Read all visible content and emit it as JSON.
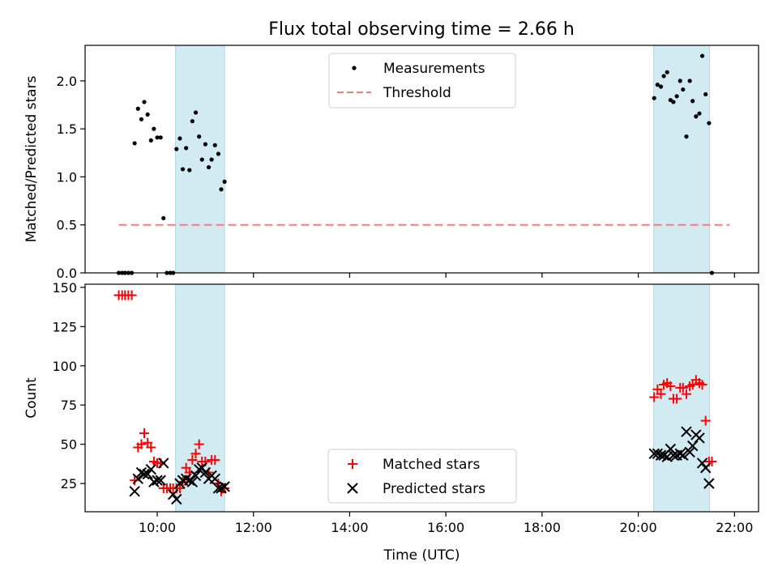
{
  "title": "Flux total observing time = 2.66 h",
  "chart_data": [
    {
      "type": "scatter",
      "panel": "top",
      "ylabel": "Matched/Predicted stars",
      "ylim": [
        0,
        2.37
      ],
      "yticks": [
        0.0,
        0.5,
        1.0,
        1.5,
        2.0
      ],
      "ytick_labels": [
        "0.0",
        "0.5",
        "1.0",
        "1.5",
        "2.0"
      ],
      "legend_position": "top-center",
      "threshold": {
        "name": "Threshold",
        "value": 0.5,
        "x_range": [
          9.2,
          21.9
        ],
        "color": "#f08080",
        "style": "dashed"
      },
      "series": [
        {
          "name": "Measurements",
          "marker": "dot",
          "color": "#000000",
          "points": [
            [
              9.2,
              0.0
            ],
            [
              9.27,
              0.0
            ],
            [
              9.33,
              0.0
            ],
            [
              9.4,
              0.0
            ],
            [
              9.47,
              0.0
            ],
            [
              9.53,
              1.35
            ],
            [
              9.6,
              1.71
            ],
            [
              9.67,
              1.6
            ],
            [
              9.73,
              1.78
            ],
            [
              9.8,
              1.65
            ],
            [
              9.87,
              1.38
            ],
            [
              9.93,
              1.5
            ],
            [
              10.0,
              1.41
            ],
            [
              10.07,
              1.41
            ],
            [
              10.13,
              0.57
            ],
            [
              10.2,
              0.0
            ],
            [
              10.27,
              0.0
            ],
            [
              10.33,
              0.0
            ],
            [
              10.4,
              1.29
            ],
            [
              10.47,
              1.4
            ],
            [
              10.53,
              1.08
            ],
            [
              10.6,
              1.3
            ],
            [
              10.67,
              1.07
            ],
            [
              10.73,
              1.58
            ],
            [
              10.8,
              1.67
            ],
            [
              10.87,
              1.42
            ],
            [
              10.93,
              1.18
            ],
            [
              11.0,
              1.34
            ],
            [
              11.07,
              1.1
            ],
            [
              11.13,
              1.18
            ],
            [
              11.2,
              1.33
            ],
            [
              11.27,
              1.24
            ],
            [
              11.33,
              0.87
            ],
            [
              11.4,
              0.95
            ],
            [
              20.33,
              1.82
            ],
            [
              20.4,
              1.96
            ],
            [
              20.47,
              1.94
            ],
            [
              20.53,
              2.05
            ],
            [
              20.6,
              2.09
            ],
            [
              20.67,
              1.8
            ],
            [
              20.73,
              1.78
            ],
            [
              20.8,
              1.84
            ],
            [
              20.87,
              2.0
            ],
            [
              20.93,
              1.91
            ],
            [
              21.0,
              1.42
            ],
            [
              21.07,
              2.0
            ],
            [
              21.13,
              1.79
            ],
            [
              21.2,
              1.63
            ],
            [
              21.27,
              1.66
            ],
            [
              21.33,
              2.26
            ],
            [
              21.4,
              1.86
            ],
            [
              21.47,
              1.56
            ],
            [
              21.53,
              0.0
            ]
          ]
        }
      ]
    },
    {
      "type": "scatter",
      "panel": "bottom",
      "xlabel": "Time (UTC)",
      "ylabel": "Count",
      "ylim": [
        7,
        152
      ],
      "yticks": [
        25,
        50,
        75,
        100,
        125,
        150
      ],
      "ytick_labels": [
        "25",
        "50",
        "75",
        "100",
        "125",
        "150"
      ],
      "legend_position": "bottom-center",
      "series": [
        {
          "name": "Matched stars",
          "marker": "plus",
          "color": "#ff0000",
          "points": [
            [
              9.2,
              145
            ],
            [
              9.27,
              145
            ],
            [
              9.33,
              145
            ],
            [
              9.4,
              145
            ],
            [
              9.47,
              145
            ],
            [
              9.53,
              27
            ],
            [
              9.6,
              48
            ],
            [
              9.67,
              50
            ],
            [
              9.73,
              57
            ],
            [
              9.8,
              51
            ],
            [
              9.87,
              48
            ],
            [
              9.93,
              39
            ],
            [
              10.0,
              38
            ],
            [
              10.07,
              38
            ],
            [
              10.13,
              22
            ],
            [
              10.2,
              22
            ],
            [
              10.27,
              22
            ],
            [
              10.33,
              22
            ],
            [
              10.4,
              22
            ],
            [
              10.47,
              22
            ],
            [
              10.53,
              26
            ],
            [
              10.6,
              35
            ],
            [
              10.67,
              32
            ],
            [
              10.73,
              40
            ],
            [
              10.8,
              44
            ],
            [
              10.87,
              50
            ],
            [
              10.93,
              39
            ],
            [
              11.0,
              39
            ],
            [
              11.07,
              32
            ],
            [
              11.13,
              40
            ],
            [
              11.2,
              40
            ],
            [
              11.27,
              25
            ],
            [
              11.33,
              20
            ],
            [
              11.4,
              22
            ],
            [
              20.33,
              80
            ],
            [
              20.4,
              85
            ],
            [
              20.47,
              82
            ],
            [
              20.53,
              88
            ],
            [
              20.6,
              89
            ],
            [
              20.67,
              87
            ],
            [
              20.73,
              79
            ],
            [
              20.8,
              79
            ],
            [
              20.87,
              86
            ],
            [
              20.93,
              86
            ],
            [
              21.0,
              82
            ],
            [
              21.07,
              87
            ],
            [
              21.13,
              88
            ],
            [
              21.2,
              91
            ],
            [
              21.27,
              89
            ],
            [
              21.33,
              88
            ],
            [
              21.4,
              65
            ],
            [
              21.47,
              39
            ],
            [
              21.53,
              39
            ]
          ]
        },
        {
          "name": "Predicted stars",
          "marker": "x",
          "color": "#000000",
          "points": [
            [
              9.53,
              20
            ],
            [
              9.6,
              28
            ],
            [
              9.67,
              32
            ],
            [
              9.73,
              31
            ],
            [
              9.8,
              31
            ],
            [
              9.87,
              34
            ],
            [
              9.93,
              26
            ],
            [
              10.0,
              27
            ],
            [
              10.07,
              27
            ],
            [
              10.13,
              38
            ],
            [
              10.33,
              18
            ],
            [
              10.4,
              15
            ],
            [
              10.47,
              25
            ],
            [
              10.53,
              27
            ],
            [
              10.6,
              28
            ],
            [
              10.67,
              27
            ],
            [
              10.73,
              26
            ],
            [
              10.8,
              30
            ],
            [
              10.87,
              34
            ],
            [
              10.93,
              35
            ],
            [
              11.0,
              32
            ],
            [
              11.07,
              28
            ],
            [
              11.13,
              30
            ],
            [
              11.2,
              28
            ],
            [
              11.27,
              22
            ],
            [
              11.33,
              22
            ],
            [
              11.4,
              23
            ],
            [
              20.33,
              44
            ],
            [
              20.4,
              44
            ],
            [
              20.47,
              43
            ],
            [
              20.53,
              43
            ],
            [
              20.6,
              42
            ],
            [
              20.67,
              47
            ],
            [
              20.73,
              43
            ],
            [
              20.8,
              43
            ],
            [
              20.87,
              44
            ],
            [
              20.93,
              43
            ],
            [
              21.0,
              58
            ],
            [
              21.07,
              45
            ],
            [
              21.13,
              49
            ],
            [
              21.2,
              56
            ],
            [
              21.27,
              54
            ],
            [
              21.33,
              38
            ],
            [
              21.4,
              35
            ],
            [
              21.47,
              25
            ]
          ]
        }
      ]
    }
  ],
  "shared_x": {
    "xlim": [
      8.5,
      22.5
    ],
    "ticks": [
      10,
      12,
      14,
      16,
      18,
      20,
      22
    ],
    "tick_labels": [
      "10:00",
      "12:00",
      "14:00",
      "16:00",
      "18:00",
      "20:00",
      "22:00"
    ],
    "highlight_spans": [
      [
        10.38,
        11.4
      ],
      [
        20.32,
        21.48
      ]
    ],
    "highlight_color": "#add8e6"
  }
}
